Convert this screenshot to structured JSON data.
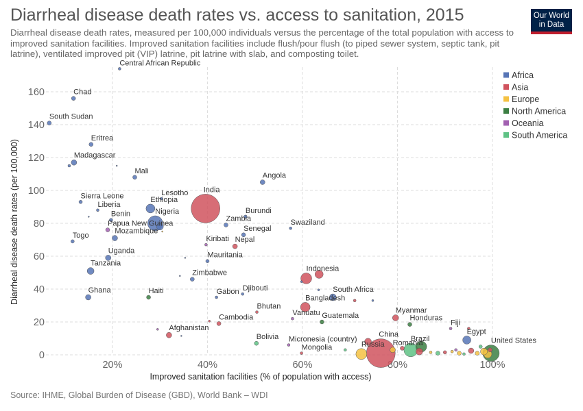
{
  "header": {
    "title": "Diarrheal disease death rates vs. access to sanitation, 2015",
    "subtitle": "Diarrheal disease death rates, measured per 100,000 individuals versus the percentage of the total population with access to improved sanitation facilities. Improved sanitation facilities include flush/pour flush (to piped sewer system, septic tank, pit latrine), ventilated improved pit (VIP) latrine, pit latrine with slab, and composting toilet.",
    "logo_line1": "Our World",
    "logo_line2": "in Data"
  },
  "footer": {
    "source": "Source: IHME, Global Burden of Disease (GBD), World Bank – WDI"
  },
  "chart_data": {
    "type": "scatter",
    "xlabel": "Improved sanitation facilities (% of population with access)",
    "ylabel": "Diarrheal disease death rates (per 100,000)",
    "xlim": [
      6,
      100
    ],
    "ylim": [
      0,
      175
    ],
    "x_ticks": [
      20,
      40,
      60,
      80,
      100
    ],
    "x_tick_labels": [
      "20%",
      "40%",
      "60%",
      "80%",
      "100%"
    ],
    "y_ticks": [
      0,
      20,
      40,
      60,
      80,
      100,
      120,
      140,
      160
    ],
    "y_tick_labels": [
      "0",
      "20",
      "40",
      "60",
      "80",
      "100",
      "120",
      "140",
      "160"
    ],
    "grid": true,
    "legend_position": "right",
    "colors": {
      "Africa": "#5775b6",
      "Asia": "#d0535e",
      "Europe": "#f5c243",
      "North America": "#3c7f43",
      "Oceania": "#a261b1",
      "South America": "#5fc285"
    },
    "legend": [
      "Africa",
      "Asia",
      "Europe",
      "North America",
      "Oceania",
      "South America"
    ],
    "points": [
      {
        "label": "Central African Republic",
        "x": 21.5,
        "y": 174,
        "region": "Africa",
        "size": 2
      },
      {
        "label": "Chad",
        "x": 11.8,
        "y": 156,
        "region": "Africa",
        "size": 3
      },
      {
        "label": "South Sudan",
        "x": 6.7,
        "y": 141,
        "region": "Africa",
        "size": 3
      },
      {
        "label": "Eritrea",
        "x": 15.5,
        "y": 128,
        "region": "Africa",
        "size": 3
      },
      {
        "label": "Madagascar",
        "x": 11.9,
        "y": 117,
        "region": "Africa",
        "size": 4
      },
      {
        "label": "",
        "x": 10.9,
        "y": 115,
        "region": "Africa",
        "size": 2
      },
      {
        "label": "",
        "x": 20.9,
        "y": 115,
        "region": "Africa",
        "size": 1
      },
      {
        "label": "Mali",
        "x": 24.7,
        "y": 108,
        "region": "Africa",
        "size": 3
      },
      {
        "label": "Angola",
        "x": 51.6,
        "y": 105,
        "region": "Africa",
        "size": 3.5
      },
      {
        "label": "India",
        "x": 39.6,
        "y": 89,
        "region": "Asia",
        "size": 21
      },
      {
        "label": "Lesotho",
        "x": 30.3,
        "y": 95,
        "region": "Africa",
        "size": 2
      },
      {
        "label": "Ethiopia",
        "x": 28.0,
        "y": 89,
        "region": "Africa",
        "size": 6.5
      },
      {
        "label": "Sierra Leone",
        "x": 13.3,
        "y": 93,
        "region": "Africa",
        "size": 2.5
      },
      {
        "label": "Liberia",
        "x": 16.9,
        "y": 88,
        "region": "Africa",
        "size": 2
      },
      {
        "label": "Benin",
        "x": 19.7,
        "y": 82,
        "region": "Africa",
        "size": 2.5
      },
      {
        "label": "",
        "x": 15.0,
        "y": 84,
        "region": "Africa",
        "size": 1
      },
      {
        "label": "Burundi",
        "x": 48.0,
        "y": 84,
        "region": "Africa",
        "size": 2.5
      },
      {
        "label": "Nigeria",
        "x": 29.0,
        "y": 80,
        "region": "Africa",
        "size": 11
      },
      {
        "label": "",
        "x": 30.0,
        "y": 78,
        "region": "Africa",
        "size": 5
      },
      {
        "label": "Zambia",
        "x": 43.9,
        "y": 79,
        "region": "Africa",
        "size": 3
      },
      {
        "label": "Swaziland",
        "x": 57.5,
        "y": 77,
        "region": "Africa",
        "size": 2
      },
      {
        "label": "Papua New Guinea",
        "x": 19.0,
        "y": 76,
        "region": "Oceania",
        "size": 3
      },
      {
        "label": "Mozambique",
        "x": 20.5,
        "y": 71,
        "region": "Africa",
        "size": 4
      },
      {
        "label": "",
        "x": 30.5,
        "y": 75,
        "region": "Europe",
        "size": 1
      },
      {
        "label": "Senegal",
        "x": 47.6,
        "y": 73,
        "region": "Africa",
        "size": 3
      },
      {
        "label": "Togo",
        "x": 11.6,
        "y": 69,
        "region": "Africa",
        "size": 2.5
      },
      {
        "label": "Kiribati",
        "x": 39.7,
        "y": 67,
        "region": "Oceania",
        "size": 2
      },
      {
        "label": "Nepal",
        "x": 45.8,
        "y": 66,
        "region": "Asia",
        "size": 3.5
      },
      {
        "label": "Uganda",
        "x": 19.1,
        "y": 59,
        "region": "Africa",
        "size": 4
      },
      {
        "label": "Mauritania",
        "x": 40.0,
        "y": 57,
        "region": "Africa",
        "size": 2.5
      },
      {
        "label": "",
        "x": 35.3,
        "y": 59,
        "region": "Africa",
        "size": 1
      },
      {
        "label": "Tanzania",
        "x": 15.4,
        "y": 51,
        "region": "Africa",
        "size": 5
      },
      {
        "label": "Zimbabwe",
        "x": 36.8,
        "y": 46,
        "region": "Africa",
        "size": 3
      },
      {
        "label": "",
        "x": 34.2,
        "y": 48,
        "region": "Africa",
        "size": 1
      },
      {
        "label": "Indonesia",
        "x": 60.8,
        "y": 46.5,
        "region": "Asia",
        "size": 8
      },
      {
        "label": "",
        "x": 63.5,
        "y": 49,
        "region": "Asia",
        "size": 6
      },
      {
        "label": "",
        "x": 59.8,
        "y": 44.5,
        "region": "Africa",
        "size": 1.5
      },
      {
        "label": "Ghana",
        "x": 14.9,
        "y": 35,
        "region": "Africa",
        "size": 4
      },
      {
        "label": "Haiti",
        "x": 27.6,
        "y": 35,
        "region": "North America",
        "size": 3
      },
      {
        "label": "Gabon",
        "x": 41.9,
        "y": 35,
        "region": "Africa",
        "size": 2
      },
      {
        "label": "Djibouti",
        "x": 47.4,
        "y": 37,
        "region": "Africa",
        "size": 2
      },
      {
        "label": "South Africa",
        "x": 66.4,
        "y": 35,
        "region": "Africa",
        "size": 5
      },
      {
        "label": "",
        "x": 71.0,
        "y": 33,
        "region": "Asia",
        "size": 2
      },
      {
        "label": "",
        "x": 74.8,
        "y": 33,
        "region": "Africa",
        "size": 1.5
      },
      {
        "label": "",
        "x": 63.4,
        "y": 39.5,
        "region": "Africa",
        "size": 1.5
      },
      {
        "label": "Bangladesh",
        "x": 60.6,
        "y": 29,
        "region": "Asia",
        "size": 7
      },
      {
        "label": "Bhutan",
        "x": 50.4,
        "y": 26,
        "region": "Asia",
        "size": 2
      },
      {
        "label": "Vanuatu",
        "x": 57.9,
        "y": 22,
        "region": "Oceania",
        "size": 2
      },
      {
        "label": "Guatemala",
        "x": 64.1,
        "y": 20,
        "region": "North America",
        "size": 3
      },
      {
        "label": "Myanmar",
        "x": 79.6,
        "y": 22.5,
        "region": "Asia",
        "size": 4.5
      },
      {
        "label": "Honduras",
        "x": 82.6,
        "y": 18.5,
        "region": "North America",
        "size": 3
      },
      {
        "label": "Cambodia",
        "x": 42.4,
        "y": 19,
        "region": "Asia",
        "size": 3
      },
      {
        "label": "",
        "x": 40.4,
        "y": 20.5,
        "region": "Asia",
        "size": 1.5
      },
      {
        "label": "Fiji",
        "x": 91.2,
        "y": 16,
        "region": "Oceania",
        "size": 2
      },
      {
        "label": "",
        "x": 95.0,
        "y": 16,
        "region": "Asia",
        "size": 2
      },
      {
        "label": "Afghanistan",
        "x": 31.9,
        "y": 12,
        "region": "Asia",
        "size": 4
      },
      {
        "label": "",
        "x": 29.5,
        "y": 15.5,
        "region": "Oceania",
        "size": 1.5
      },
      {
        "label": "",
        "x": 34.5,
        "y": 11.5,
        "region": "Africa",
        "size": 1
      },
      {
        "label": "Bolivia",
        "x": 50.3,
        "y": 7,
        "region": "South America",
        "size": 3
      },
      {
        "label": "Micronesia (country)",
        "x": 57.1,
        "y": 6,
        "region": "Oceania",
        "size": 2
      },
      {
        "label": "Mongolia",
        "x": 59.8,
        "y": 1,
        "region": "Asia",
        "size": 2
      },
      {
        "label": "China",
        "x": 76.5,
        "y": 1,
        "region": "Asia",
        "size": 21
      },
      {
        "label": "Russia",
        "x": 72.4,
        "y": 0.5,
        "region": "Europe",
        "size": 8
      },
      {
        "label": "",
        "x": 73.8,
        "y": 8,
        "region": "Asia",
        "size": 5
      },
      {
        "label": "",
        "x": 69.0,
        "y": 3,
        "region": "South America",
        "size": 2
      },
      {
        "label": "Romania",
        "x": 79.0,
        "y": 3,
        "region": "Europe",
        "size": 4
      },
      {
        "label": "",
        "x": 81.0,
        "y": 4,
        "region": "Asia",
        "size": 3
      },
      {
        "label": "Brazil",
        "x": 82.8,
        "y": 3,
        "region": "South America",
        "size": 10
      },
      {
        "label": "",
        "x": 85.0,
        "y": 5,
        "region": "North America",
        "size": 8
      },
      {
        "label": "",
        "x": 84.6,
        "y": 2,
        "region": "Asia",
        "size": 5
      },
      {
        "label": "",
        "x": 87.0,
        "y": 1.5,
        "region": "Europe",
        "size": 2
      },
      {
        "label": "",
        "x": 88.5,
        "y": 1,
        "region": "South America",
        "size": 3
      },
      {
        "label": "",
        "x": 90.0,
        "y": 1.5,
        "region": "Asia",
        "size": 2.5
      },
      {
        "label": "",
        "x": 91.5,
        "y": 2,
        "region": "Europe",
        "size": 2
      },
      {
        "label": "Egypt",
        "x": 94.6,
        "y": 9,
        "region": "Africa",
        "size": 6
      },
      {
        "label": "United States",
        "x": 99.7,
        "y": 1,
        "region": "North America",
        "size": 12
      },
      {
        "label": "",
        "x": 93.0,
        "y": 1,
        "region": "Europe",
        "size": 3
      },
      {
        "label": "",
        "x": 95.5,
        "y": 2.5,
        "region": "Asia",
        "size": 4
      },
      {
        "label": "",
        "x": 96.8,
        "y": 1,
        "region": "Europe",
        "size": 3
      },
      {
        "label": "",
        "x": 98.2,
        "y": 2,
        "region": "Europe",
        "size": 5
      },
      {
        "label": "",
        "x": 99.0,
        "y": 0.5,
        "region": "Europe",
        "size": 6
      },
      {
        "label": "",
        "x": 99.5,
        "y": 3,
        "region": "Asia",
        "size": 3
      },
      {
        "label": "",
        "x": 97.5,
        "y": 5,
        "region": "South America",
        "size": 2.5
      },
      {
        "label": "",
        "x": 92.3,
        "y": 3,
        "region": "Oceania",
        "size": 2
      },
      {
        "label": "",
        "x": 94.0,
        "y": 0.5,
        "region": "South America",
        "size": 2
      }
    ]
  }
}
